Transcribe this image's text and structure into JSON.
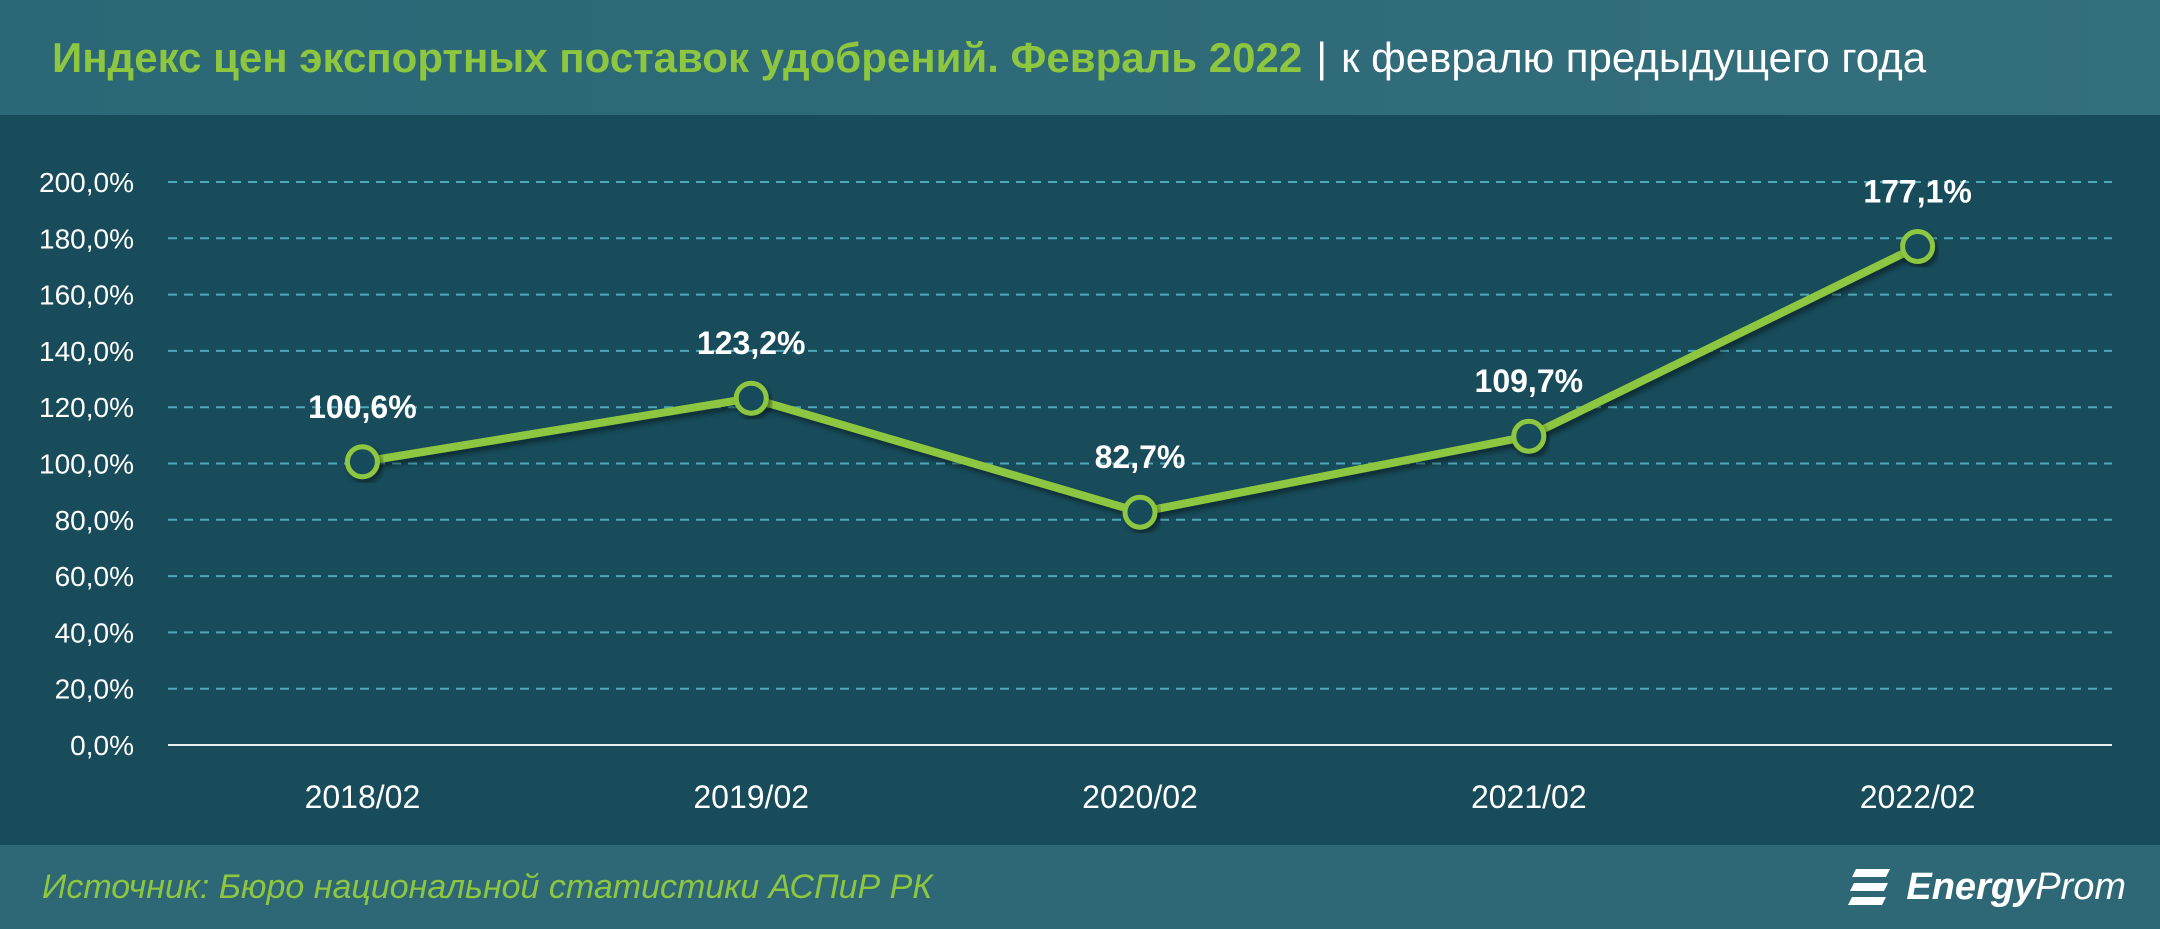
{
  "header": {
    "title": "Индекс цен экспортных поставок удобрений. Февраль 2022",
    "separator": "|",
    "subtitle": "к февралю предыдущего года"
  },
  "footer": {
    "source": "Источник: Бюро национальной статистики АСПиР РК",
    "brand_bold": "Energy",
    "brand_regular": "Prom",
    "brand_logo_icon": "energyprom-logo-icon"
  },
  "colors": {
    "line": "#8dc63f",
    "background": "#184c5b",
    "grid": "#4fa8b8",
    "text": "#ffffff"
  },
  "chart_data": {
    "type": "line",
    "categories": [
      "2018/02",
      "2019/02",
      "2020/02",
      "2021/02",
      "2022/02"
    ],
    "series": [
      {
        "values": [
          100.6,
          123.2,
          82.7,
          109.7,
          177.1
        ]
      }
    ],
    "data_labels": [
      "100,6%",
      "123,2%",
      "82,7%",
      "109,7%",
      "177,1%"
    ],
    "y_ticks": [
      "0,0%",
      "20,0%",
      "40,0%",
      "60,0%",
      "80,0%",
      "100,0%",
      "120,0%",
      "140,0%",
      "160,0%",
      "180,0%",
      "200,0%"
    ],
    "ylim": [
      0,
      200
    ],
    "grid": true,
    "legend": "none"
  }
}
